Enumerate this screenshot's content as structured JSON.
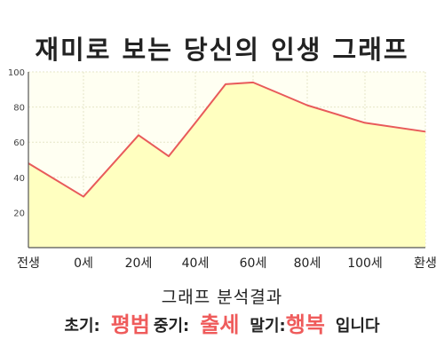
{
  "title": "재미로 보는 당신의 인생 그래프",
  "chart_data": {
    "type": "area",
    "title": "재미로 보는 당신의 인생 그래프",
    "ylim": [
      0,
      100
    ],
    "y_ticks": [
      20,
      40,
      60,
      80,
      100
    ],
    "x_tick_labels": [
      "전생",
      "0세",
      "20세",
      "40세",
      "60세",
      "80세",
      "100세",
      "환생"
    ],
    "points": [
      {
        "x": "전생",
        "y": 48
      },
      {
        "x": "0세",
        "y": 29
      },
      {
        "x": "20세",
        "y": 64
      },
      {
        "x": "30세",
        "y": 52
      },
      {
        "x": "40세",
        "y": 71
      },
      {
        "x": "50세",
        "y": 93
      },
      {
        "x": "60세",
        "y": 94
      },
      {
        "x": "70세",
        "y": 87
      },
      {
        "x": "80세",
        "y": 81
      },
      {
        "x": "100세",
        "y": 71
      },
      {
        "x": "환생",
        "y": 66
      }
    ],
    "grid": true,
    "colors": {
      "line": "#e85a5a",
      "fill": "#ffffc0",
      "plot_bg": "#fffff2"
    }
  },
  "result": {
    "heading": "그래프 분석결과",
    "early_label": "초기:",
    "early_value": "평범",
    "middle_label": "중기:",
    "middle_value": "출세",
    "late_label": "말기:",
    "late_value": "행복",
    "suffix": "입니다"
  }
}
